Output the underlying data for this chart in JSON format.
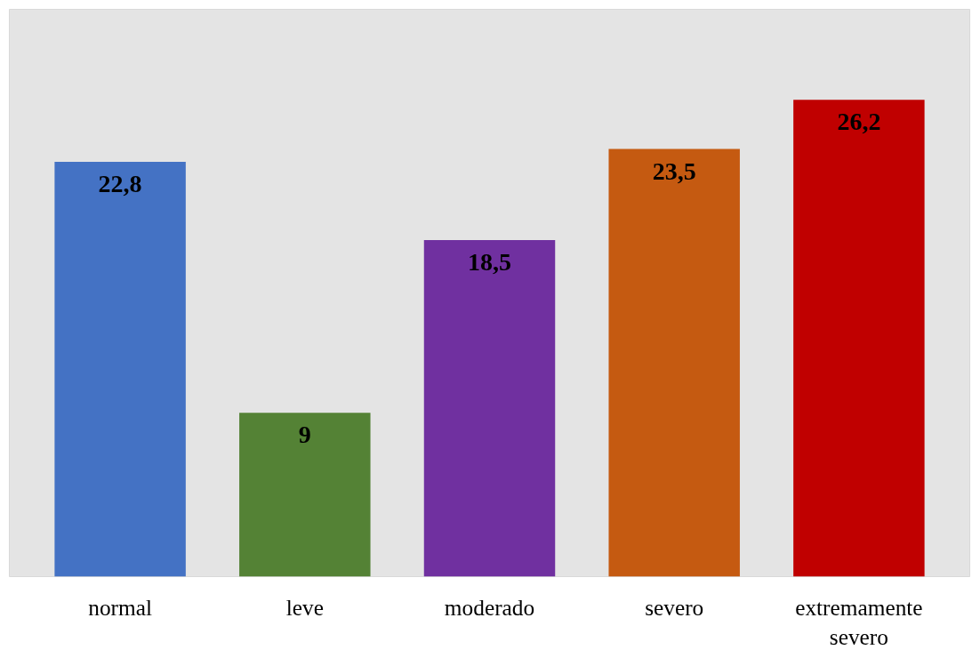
{
  "chart_data": {
    "type": "bar",
    "categories": [
      "normal",
      "leve",
      "moderado",
      "severo",
      "extremamente severo"
    ],
    "values": [
      22.8,
      9,
      18.5,
      23.5,
      26.2
    ],
    "colors": [
      "#4472c4",
      "#548235",
      "#7030a0",
      "#c55a11",
      "#c00000"
    ],
    "value_labels": [
      "22,8",
      "9",
      "18,5",
      "23,5",
      "26,2"
    ]
  }
}
